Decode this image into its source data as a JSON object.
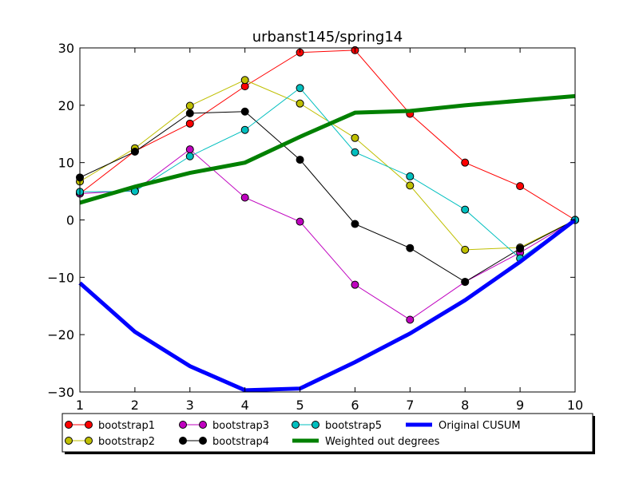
{
  "chart_data": {
    "type": "line",
    "title": "urbanst145/spring14",
    "xlabel": "",
    "ylabel": "",
    "xlim": [
      1,
      10
    ],
    "ylim": [
      -30,
      30
    ],
    "x": [
      1,
      2,
      3,
      4,
      5,
      6,
      7,
      8,
      9,
      10
    ],
    "xticks": [
      "1",
      "2",
      "3",
      "4",
      "5",
      "6",
      "7",
      "8",
      "9",
      "10"
    ],
    "yticks": [
      {
        "value": 30,
        "label": "30"
      },
      {
        "value": 20,
        "label": "20"
      },
      {
        "value": 10,
        "label": "10"
      },
      {
        "value": 0,
        "label": "0"
      },
      {
        "value": -10,
        "label": "−10"
      },
      {
        "value": -20,
        "label": "−20"
      },
      {
        "value": -30,
        "label": "−30"
      }
    ],
    "grid": false,
    "legend_position": "bottom",
    "series": [
      {
        "name": "bootstrap1",
        "color": "#ff0000",
        "marker": "circle",
        "linewidth": 1,
        "values": [
          4.6,
          12.0,
          16.8,
          23.3,
          29.2,
          29.6,
          18.5,
          10.0,
          5.9,
          0.0
        ]
      },
      {
        "name": "bootstrap2",
        "color": "#bfbf00",
        "marker": "circle",
        "linewidth": 1,
        "values": [
          6.7,
          12.5,
          19.9,
          24.4,
          20.3,
          14.3,
          6.0,
          -5.2,
          -4.8,
          0.0
        ]
      },
      {
        "name": "bootstrap3",
        "color": "#bf00bf",
        "marker": "circle",
        "linewidth": 1,
        "values": [
          4.6,
          5.1,
          12.3,
          3.9,
          -0.3,
          -11.3,
          -17.4,
          -10.8,
          -5.7,
          0.0
        ]
      },
      {
        "name": "bootstrap4",
        "color": "#000000",
        "marker": "circle",
        "linewidth": 1,
        "values": [
          7.4,
          11.9,
          18.6,
          18.9,
          10.5,
          -0.7,
          -4.9,
          -10.8,
          -5.0,
          0.0
        ]
      },
      {
        "name": "bootstrap5",
        "color": "#00bfbf",
        "marker": "circle",
        "linewidth": 1,
        "values": [
          4.9,
          5.0,
          11.1,
          15.7,
          23.0,
          11.8,
          7.6,
          1.8,
          -6.7,
          0.0
        ]
      },
      {
        "name": "Weighted out degrees",
        "color": "#008000",
        "marker": "none",
        "linewidth": 5,
        "values": [
          3.0,
          5.8,
          8.2,
          10.0,
          14.5,
          18.7,
          19.0,
          20.0,
          20.8,
          21.6
        ]
      },
      {
        "name": "Original CUSUM",
        "color": "#0000ff",
        "marker": "none",
        "linewidth": 5,
        "values": [
          -11.0,
          -19.5,
          -25.5,
          -29.7,
          -29.4,
          -24.8,
          -19.8,
          -14.0,
          -7.3,
          0.0
        ]
      }
    ]
  }
}
